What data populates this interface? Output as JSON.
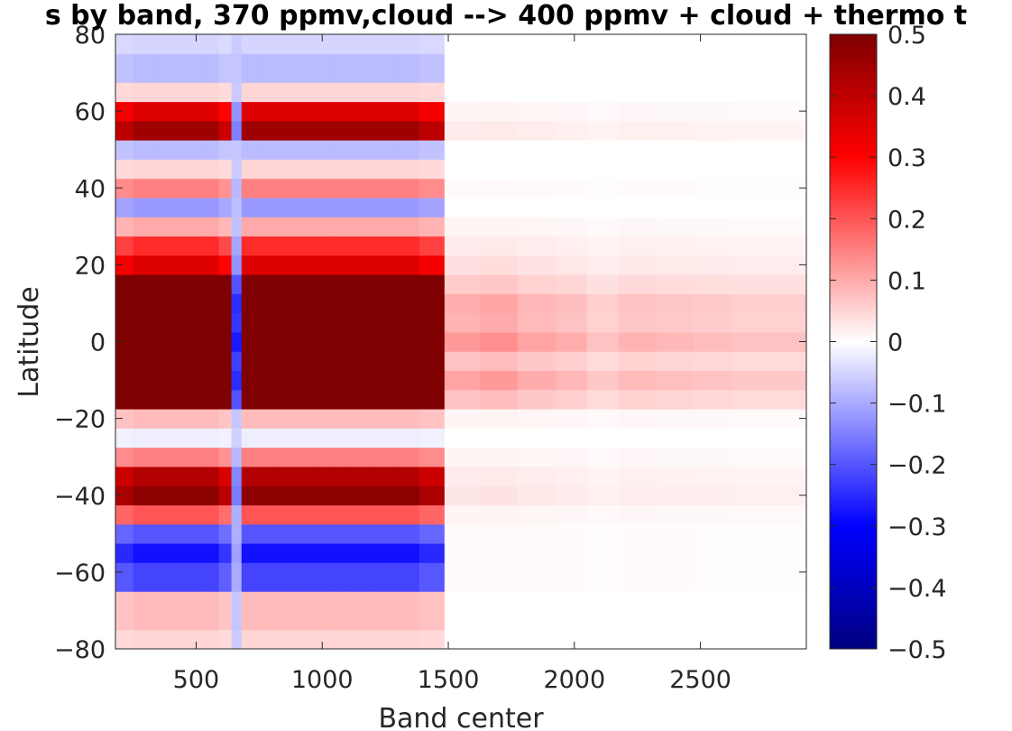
{
  "chart_data": {
    "type": "heatmap",
    "title": "s by band, 370 ppmv,cloud --> 400 ppmv + cloud + thermo t",
    "xlabel": "Band center",
    "ylabel": "Latitude",
    "xlim": [
      180,
      2920
    ],
    "ylim": [
      -80,
      80
    ],
    "xticks": [
      500,
      1000,
      1500,
      2000,
      2500
    ],
    "xtick_labels": [
      "500",
      "1000",
      "1500",
      "2000",
      "2500"
    ],
    "yticks": [
      -80,
      -60,
      -40,
      -20,
      0,
      20,
      40,
      60,
      80
    ],
    "ytick_labels": [
      "−80",
      "−60",
      "−40",
      "−20",
      "0",
      "20",
      "40",
      "60",
      "80"
    ],
    "colorbar": {
      "range": [
        -0.5,
        0.5
      ],
      "colormap": "blue-white-red",
      "ticks": [
        -0.5,
        -0.4,
        -0.3,
        -0.2,
        -0.1,
        0,
        0.1,
        0.2,
        0.3,
        0.4,
        0.5
      ],
      "tick_labels": [
        "−0.5",
        "−0.4",
        "−0.3",
        "−0.2",
        "−0.1",
        "0",
        "0.1",
        "0.2",
        "0.3",
        "0.4",
        "0.5"
      ],
      "colors": [
        "#00007f",
        "#0000ff",
        "#ffffff",
        "#ff0000",
        "#7f0000"
      ]
    },
    "band_centers": [
      200,
      300,
      400,
      500,
      560,
      620,
      660,
      700,
      780,
      860,
      920,
      1000,
      1060,
      1150,
      1250,
      1350,
      1420,
      1550,
      1700,
      1850,
      2000,
      2100,
      2250,
      2400,
      2550,
      2700,
      2850
    ],
    "latitudes": [
      -80,
      -70,
      -60,
      -55,
      -50,
      -45,
      -40,
      -35,
      -30,
      -25,
      -20,
      -15,
      -10,
      -5,
      0,
      5,
      10,
      15,
      20,
      25,
      30,
      35,
      40,
      45,
      50,
      55,
      60,
      65,
      70,
      80
    ],
    "band_profiles": [
      0.9,
      1,
      1,
      1,
      1,
      0.85,
      -1,
      1,
      1,
      1,
      1,
      1,
      1,
      1,
      1,
      1,
      0.9,
      0.2,
      0.22,
      0.18,
      0.16,
      0.12,
      0.15,
      0.14,
      0.13,
      0.12,
      0.12
    ],
    "lat_profile_lw": [
      0.05,
      0.08,
      -0.22,
      -0.28,
      -0.2,
      0.2,
      0.48,
      0.42,
      0.15,
      -0.02,
      0.08,
      0.7,
      0.9,
      0.8,
      1.0,
      0.85,
      0.9,
      0.7,
      0.35,
      0.25,
      0.1,
      -0.12,
      0.15,
      0.05,
      -0.08,
      0.45,
      0.35,
      0.05,
      -0.08,
      -0.05
    ],
    "lat_profile_sw": [
      0,
      0,
      0.01,
      0.01,
      0.01,
      0.02,
      0.05,
      0.04,
      0.02,
      0,
      0.02,
      0.12,
      0.18,
      0.12,
      0.2,
      0.15,
      0.16,
      0.1,
      0.06,
      0.04,
      0.02,
      0,
      0.01,
      0,
      0,
      0.04,
      0.02,
      0,
      0,
      0
    ]
  }
}
